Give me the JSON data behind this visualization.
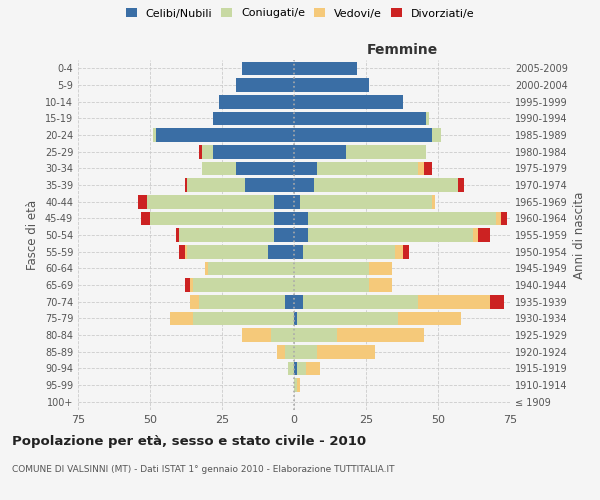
{
  "age_groups": [
    "100+",
    "95-99",
    "90-94",
    "85-89",
    "80-84",
    "75-79",
    "70-74",
    "65-69",
    "60-64",
    "55-59",
    "50-54",
    "45-49",
    "40-44",
    "35-39",
    "30-34",
    "25-29",
    "20-24",
    "15-19",
    "10-14",
    "5-9",
    "0-4"
  ],
  "birth_years": [
    "≤ 1909",
    "1910-1914",
    "1915-1919",
    "1920-1924",
    "1925-1929",
    "1930-1934",
    "1935-1939",
    "1940-1944",
    "1945-1949",
    "1950-1954",
    "1955-1959",
    "1960-1964",
    "1965-1969",
    "1970-1974",
    "1975-1979",
    "1980-1984",
    "1985-1989",
    "1990-1994",
    "1995-1999",
    "2000-2004",
    "2005-2009"
  ],
  "males": {
    "celibe": [
      0,
      0,
      0,
      0,
      0,
      0,
      3,
      0,
      0,
      9,
      7,
      7,
      7,
      17,
      20,
      28,
      48,
      28,
      26,
      20,
      18
    ],
    "coniugato": [
      0,
      0,
      2,
      3,
      8,
      35,
      30,
      35,
      30,
      28,
      33,
      43,
      44,
      20,
      12,
      4,
      1,
      0,
      0,
      0,
      0
    ],
    "vedovo": [
      0,
      0,
      0,
      3,
      10,
      8,
      3,
      1,
      1,
      1,
      0,
      0,
      0,
      0,
      0,
      0,
      0,
      0,
      0,
      0,
      0
    ],
    "divorziato": [
      0,
      0,
      0,
      0,
      0,
      0,
      0,
      2,
      0,
      2,
      1,
      3,
      3,
      1,
      0,
      1,
      0,
      0,
      0,
      0,
      0
    ]
  },
  "females": {
    "nubile": [
      0,
      0,
      1,
      0,
      0,
      1,
      3,
      0,
      0,
      3,
      5,
      5,
      2,
      7,
      8,
      18,
      48,
      46,
      38,
      26,
      22
    ],
    "coniugata": [
      0,
      1,
      3,
      8,
      15,
      35,
      40,
      26,
      26,
      32,
      57,
      65,
      46,
      50,
      35,
      28,
      3,
      1,
      0,
      0,
      0
    ],
    "vedova": [
      0,
      1,
      5,
      20,
      30,
      22,
      25,
      8,
      8,
      3,
      2,
      2,
      1,
      0,
      2,
      0,
      0,
      0,
      0,
      0,
      0
    ],
    "divorziata": [
      0,
      0,
      0,
      0,
      0,
      0,
      5,
      0,
      0,
      2,
      4,
      2,
      0,
      2,
      3,
      0,
      0,
      0,
      0,
      0,
      0
    ]
  },
  "colors": {
    "celibe": "#3a6ea5",
    "coniugato": "#c8d9a3",
    "vedovo": "#f5c97a",
    "divorziato": "#cc2222"
  },
  "xlim": 75,
  "title": "Popolazione per età, sesso e stato civile - 2010",
  "subtitle": "COMUNE DI VALSINNI (MT) - Dati ISTAT 1° gennaio 2010 - Elaborazione TUTTITALIA.IT",
  "ylabel_left": "Fasce di età",
  "ylabel_right": "Anni di nascita",
  "xlabel_right": "Femmine",
  "bg_color": "#f5f5f5",
  "legend_labels": [
    "Celibi/Nubili",
    "Coniugati/e",
    "Vedovi/e",
    "Divorziati/e"
  ]
}
